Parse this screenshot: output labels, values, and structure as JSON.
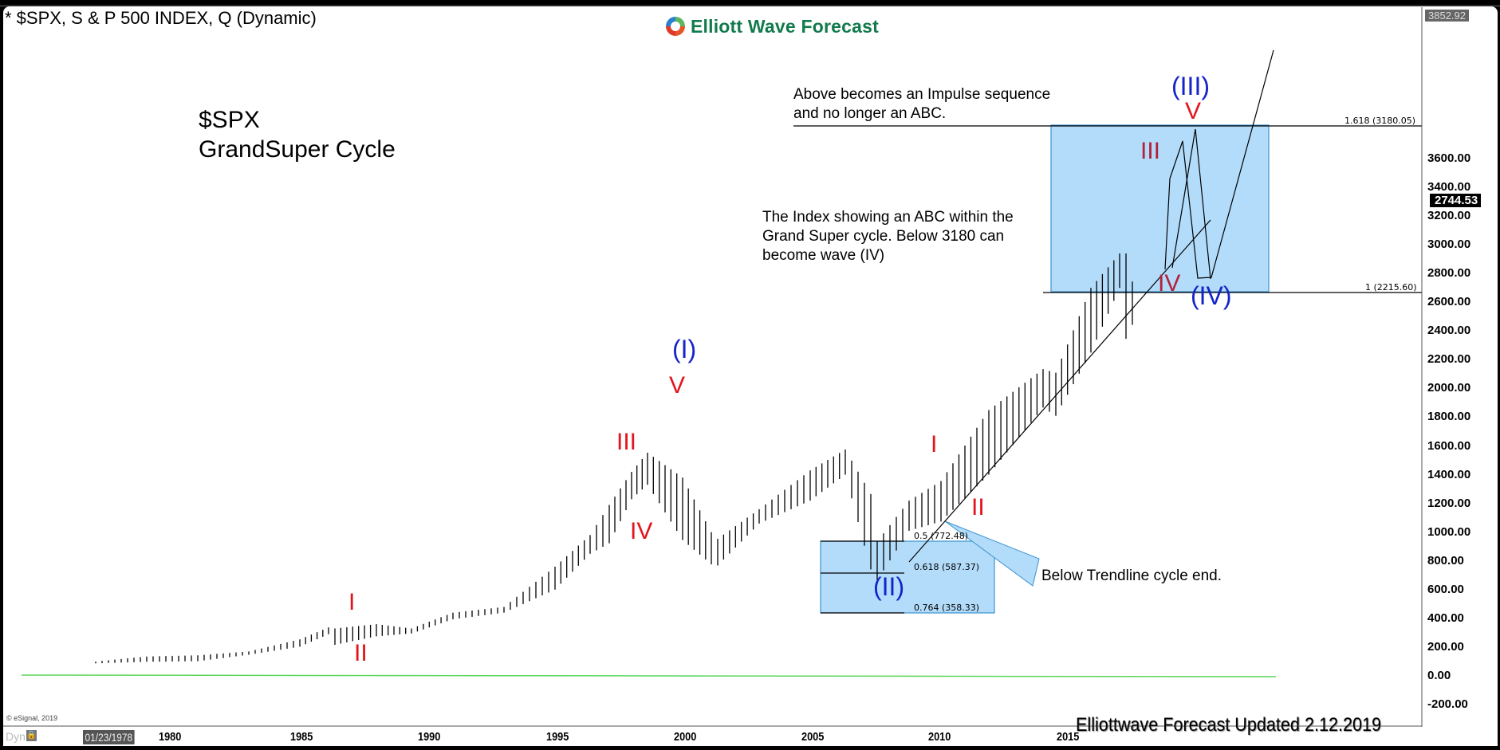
{
  "window": {
    "title": "* $SPX, S & P 500 INDEX, Q (Dynamic)",
    "logo_text": "Elliott Wave Forecast",
    "copyright": "© eSignal, 2019",
    "footer": "Elliottwave Forecast  Updated 2.12.2019",
    "dyn_label": "Dyn",
    "lock_icon": "lock-icon",
    "date_cursor": "01/23/1978",
    "high_flag": "3852.92",
    "last_price_flag": "2744.53"
  },
  "labels": {
    "symbol": "$SPX",
    "subtitle": "GrandSuper Cycle",
    "note_impulse_line1": "Above becomes an Impulse sequence",
    "note_impulse_line2": "and no longer an ABC.",
    "note_abc_line1": "The Index showing an ABC within the",
    "note_abc_line2": "Grand Super cycle. Below 3180 can",
    "note_abc_line3": "become wave (IV)",
    "note_trendline": "Below Trendline cycle end."
  },
  "fib_levels": {
    "upper_1618": "1.618 (3180.05)",
    "upper_1": "1 (2215.60)",
    "lower_05": "0.5 (772.48)",
    "lower_0618": "0.618 (587.37)",
    "lower_0764": "0.764 (358.33)"
  },
  "waves": {
    "w1987_I": "I",
    "w1987_II": "II",
    "w1998_III": "III",
    "w1998_IV": "IV",
    "w2000_V": "V",
    "w2000_cycle_I": "(I)",
    "w2009_cycle_II": "(II)",
    "w2010_I": "I",
    "w2011_II": "II",
    "w2018_III": "III",
    "w2016_IV": "IV",
    "w_proj_V": "V",
    "w_proj_cycle_III": "(III)",
    "w_proj_cycle_IV": "(IV)"
  },
  "y_axis": {
    "ticks": [
      "3600.00",
      "3400.00",
      "3200.00",
      "3000.00",
      "2800.00",
      "2600.00",
      "2400.00",
      "2200.00",
      "2000.00",
      "1800.00",
      "1600.00",
      "1400.00",
      "1200.00",
      "1000.00",
      "800.00",
      "600.00",
      "400.00",
      "200.00",
      "0.00",
      "-200.00"
    ]
  },
  "x_axis": {
    "ticks": [
      "1980",
      "1985",
      "1990",
      "1995",
      "2000",
      "2005",
      "2010",
      "2015"
    ]
  },
  "colors": {
    "logo_green": "#127a4c",
    "wave_red": "#e3141c",
    "wave_blue": "#1424c8",
    "wave_darkred": "#b3213a",
    "fib_box_fill": "#b3dcfa",
    "fib_box_border": "#3a93d0",
    "zero_line": "#5ad65a"
  },
  "chart_data": {
    "type": "bar",
    "subtype": "OHLC quarterly bars",
    "title": "$SPX GrandSuper Cycle",
    "xlabel": "",
    "ylabel": "",
    "ylim": [
      -200,
      3852.92
    ],
    "xlim": [
      "1978",
      "2020"
    ],
    "grid": false,
    "legend": null,
    "last_price": 2744.53,
    "series": [
      {
        "name": "S&P 500 Index quarterly high/low (approx.)",
        "points": [
          {
            "x": "1978",
            "low": 87,
            "high": 100
          },
          {
            "x": "1980",
            "low": 98,
            "high": 135
          },
          {
            "x": "1982",
            "low": 102,
            "high": 143
          },
          {
            "x": "1984",
            "low": 147,
            "high": 170
          },
          {
            "x": "1986",
            "low": 203,
            "high": 254
          },
          {
            "x": "1987Q3",
            "low": 290,
            "high": 337
          },
          {
            "x": "1987Q4",
            "low": 216,
            "high": 330
          },
          {
            "x": "1989",
            "low": 275,
            "high": 360
          },
          {
            "x": "1990Q4",
            "low": 295,
            "high": 330
          },
          {
            "x": "1992",
            "low": 394,
            "high": 440
          },
          {
            "x": "1994",
            "low": 440,
            "high": 480
          },
          {
            "x": "1996",
            "low": 600,
            "high": 760
          },
          {
            "x": "1997Q4",
            "low": 850,
            "high": 980
          },
          {
            "x": "1998Q3",
            "low": 923,
            "high": 1190
          },
          {
            "x": "1999",
            "low": 1230,
            "high": 1420
          },
          {
            "x": "2000Q1",
            "low": 1330,
            "high": 1553
          },
          {
            "x": "2001",
            "low": 945,
            "high": 1380
          },
          {
            "x": "2002Q3",
            "low": 776,
            "high": 1000
          },
          {
            "x": "2002Q4",
            "low": 768,
            "high": 954
          },
          {
            "x": "2004",
            "low": 1060,
            "high": 1160
          },
          {
            "x": "2006",
            "low": 1220,
            "high": 1430
          },
          {
            "x": "2007Q4",
            "low": 1400,
            "high": 1576
          },
          {
            "x": "2008Q4",
            "low": 741,
            "high": 1266
          },
          {
            "x": "2009Q1",
            "low": 666,
            "high": 935
          },
          {
            "x": "2010Q2",
            "low": 1010,
            "high": 1220
          },
          {
            "x": "2011Q3",
            "low": 1074,
            "high": 1356
          },
          {
            "x": "2013",
            "low": 1400,
            "high": 1850
          },
          {
            "x": "2015Q3",
            "low": 1867,
            "high": 2135
          },
          {
            "x": "2016Q1",
            "low": 1810,
            "high": 2110
          },
          {
            "x": "2017",
            "low": 2250,
            "high": 2700
          },
          {
            "x": "2018Q3",
            "low": 2700,
            "high": 2940
          },
          {
            "x": "2018Q4",
            "low": 2346,
            "high": 2940
          },
          {
            "x": "2019Q1",
            "low": 2443,
            "high": 2744.53
          }
        ]
      }
    ],
    "annotations": [
      {
        "type": "fib_box",
        "label": "1.618 (3180.05)",
        "y": 3180.05
      },
      {
        "type": "fib_box",
        "label": "1 (2215.60)",
        "y": 2215.6
      },
      {
        "type": "fib_box",
        "label": "0.5 (772.48)",
        "y": 772.48
      },
      {
        "type": "fib_box",
        "label": "0.618 (587.37)",
        "y": 587.37
      },
      {
        "type": "fib_box",
        "label": "0.764 (358.33)",
        "y": 358.33
      },
      {
        "type": "trendline",
        "from": {
          "x": "2009",
          "y": 660
        },
        "to": {
          "x": "2019",
          "y": 2640
        }
      },
      {
        "type": "projection",
        "path": [
          {
            "x": "2018Q4",
            "y": 2346
          },
          {
            "x": "2019Q3",
            "y": 3150
          },
          {
            "x": "2020",
            "y": 2290
          },
          {
            "x": "2021",
            "y": 3640
          }
        ]
      },
      {
        "type": "text",
        "text": "Below Trendline cycle end."
      }
    ]
  }
}
